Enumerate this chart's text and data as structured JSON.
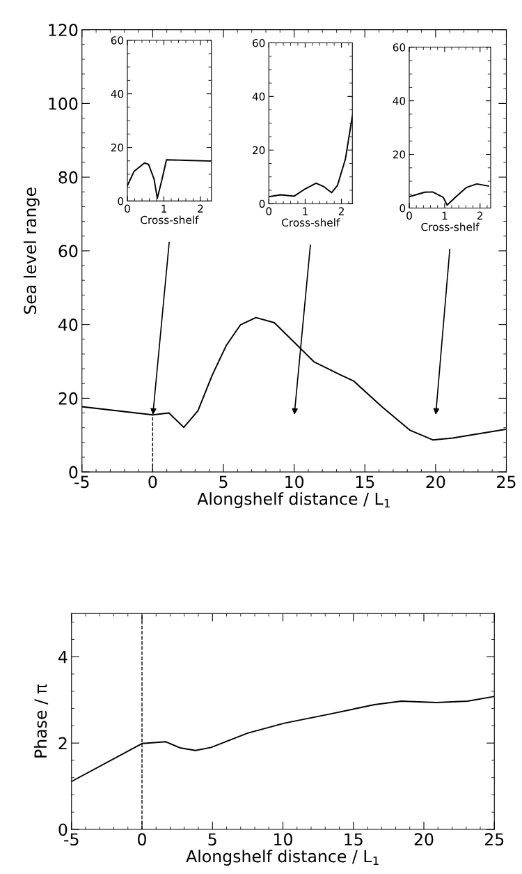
{
  "chart_data": [
    {
      "type": "line",
      "xlabel": "Alongshelf distance / L$_{1}$",
      "ylabel": "Sea level range",
      "xlim": [
        -5,
        25
      ],
      "ylim": [
        0,
        120
      ],
      "xticks": [
        -5,
        0,
        5,
        10,
        15,
        20,
        25
      ],
      "yticks": [
        0,
        20,
        40,
        60,
        80,
        100,
        120
      ],
      "grid": false,
      "legend": false,
      "marker": "none",
      "line_style": "solid",
      "series": [
        {
          "color": "#000000",
          "x": [
            -5,
            0,
            1.15,
            2.2,
            3.2,
            4.2,
            5.2,
            6.2,
            7.3,
            8.6,
            10,
            11.4,
            13.2,
            14.2,
            16.2,
            18.2,
            19.8,
            21.2,
            25
          ],
          "values": [
            17.7,
            15.5,
            16.0,
            12.1,
            16.6,
            26.2,
            34.3,
            39.9,
            41.9,
            40.5,
            35.2,
            29.9,
            26.5,
            24.7,
            17.7,
            11.3,
            8.7,
            9.2,
            11.6
          ]
        }
      ],
      "ref_lines": [
        {
          "axis": "x",
          "value": 0,
          "color": "#000000",
          "line_style": "dashed"
        }
      ]
    },
    {
      "type": "line",
      "xlabel": "Cross-shelf",
      "xlim": [
        0,
        2.3
      ],
      "ylim": [
        0,
        60
      ],
      "xticks": [
        0,
        1,
        2
      ],
      "yticks": [
        0,
        20,
        40,
        60
      ],
      "grid": false,
      "legend": false,
      "marker": "none",
      "line_style": "solid",
      "series": [
        {
          "color": "#000000",
          "x": [
            0,
            0.18,
            0.47,
            0.58,
            0.73,
            0.82,
            0.95,
            1.07,
            1.57,
            2.3
          ],
          "values": [
            5.7,
            11,
            14.2,
            13.7,
            8.2,
            1,
            8.2,
            15.4,
            15.2,
            14.9
          ]
        }
      ]
    },
    {
      "type": "line",
      "xlabel": "Cross-shelf",
      "xlim": [
        0,
        2.3
      ],
      "ylim": [
        0,
        60
      ],
      "xticks": [
        0,
        1,
        2
      ],
      "yticks": [
        0,
        20,
        40,
        60
      ],
      "grid": false,
      "legend": false,
      "marker": "none",
      "line_style": "solid",
      "series": [
        {
          "color": "#000000",
          "x": [
            0,
            0.33,
            0.7,
            1,
            1.3,
            1.52,
            1.73,
            1.89,
            2.11,
            2.3
          ],
          "values": [
            2.6,
            3.3,
            2.8,
            5.5,
            7.6,
            6.3,
            4.1,
            6.8,
            16.7,
            32.7
          ]
        }
      ]
    },
    {
      "type": "line",
      "xlabel": "Cross-shelf",
      "xlim": [
        0,
        2.3
      ],
      "ylim": [
        0,
        60
      ],
      "xticks": [
        0,
        1,
        2
      ],
      "yticks": [
        0,
        20,
        40,
        60
      ],
      "grid": false,
      "legend": false,
      "marker": "none",
      "line_style": "solid",
      "series": [
        {
          "color": "#000000",
          "x": [
            0,
            0.44,
            0.66,
            0.96,
            1.07,
            1.32,
            1.62,
            1.91,
            2.24
          ],
          "values": [
            4.2,
            5.9,
            6,
            4,
            1.1,
            4.2,
            7.7,
            9,
            8.2
          ]
        }
      ]
    },
    {
      "type": "line",
      "xlabel": "Alongshelf distance / L$_{1}$",
      "ylabel": "Phase / π",
      "xlim": [
        -5,
        25
      ],
      "ylim": [
        0,
        5
      ],
      "xticks": [
        -5,
        0,
        5,
        10,
        15,
        20,
        25
      ],
      "yticks": [
        0,
        2,
        4
      ],
      "grid": false,
      "legend": false,
      "marker": "none",
      "line_style": "solid",
      "series": [
        {
          "color": "#000000",
          "x": [
            -5,
            0,
            1.7,
            2.7,
            3.8,
            4.9,
            7.5,
            10.1,
            13.3,
            16.5,
            18.4,
            20.9,
            23.1,
            25
          ],
          "values": [
            1.11,
            1.99,
            2.03,
            1.89,
            1.83,
            1.9,
            2.23,
            2.46,
            2.67,
            2.89,
            2.97,
            2.94,
            2.97,
            3.08
          ]
        }
      ],
      "ref_lines": [
        {
          "axis": "x",
          "value": 0,
          "color": "#000000",
          "line_style": "dashed"
        }
      ]
    }
  ]
}
